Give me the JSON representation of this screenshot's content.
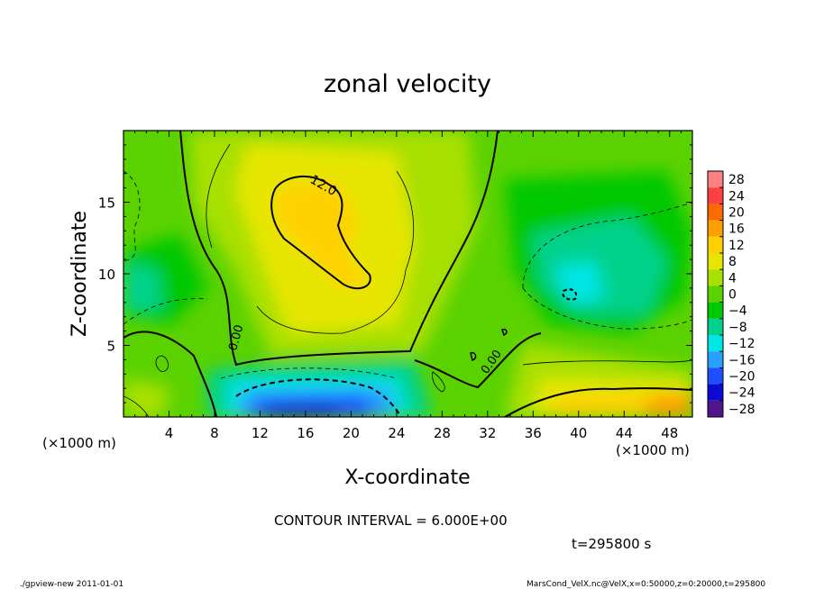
{
  "chart_data": {
    "type": "heatmap",
    "title": "zonal velocity",
    "xlabel": "X-coordinate",
    "ylabel": "Z-coordinate",
    "x_unit": "(×1000 m)",
    "y_unit": "(×1000 m)",
    "xlim": [
      0,
      50
    ],
    "ylim": [
      0,
      20
    ],
    "x_ticks": [
      "4",
      "8",
      "12",
      "16",
      "20",
      "24",
      "28",
      "32",
      "36",
      "40",
      "44",
      "48"
    ],
    "y_ticks": [
      "5",
      "10",
      "15"
    ],
    "colorbar": {
      "levels": [
        "28",
        "24",
        "20",
        "16",
        "12",
        "8",
        "4",
        "0",
        "−4",
        "−8",
        "−12",
        "−16",
        "−20",
        "−24",
        "−28"
      ],
      "colors": [
        "#ff8080",
        "#ff4040",
        "#ff6a00",
        "#ffa000",
        "#ffd000",
        "#e6e600",
        "#a8e000",
        "#5ad200",
        "#00c800",
        "#00d28c",
        "#00e6e6",
        "#28a0ff",
        "#1e50ff",
        "#0a0ad2",
        "#50148c"
      ]
    },
    "contour_labels": [
      "12.0",
      "0.00",
      "0.00"
    ],
    "contour_interval_text": "CONTOUR INTERVAL = 6.000E+00",
    "time_text": "t=295800 s"
  },
  "footer": {
    "left": "./gpview-new  2011-01-01",
    "right": "MarsCond_VelX.nc@VelX,x=0:50000,z=0:20000,t=295800"
  }
}
